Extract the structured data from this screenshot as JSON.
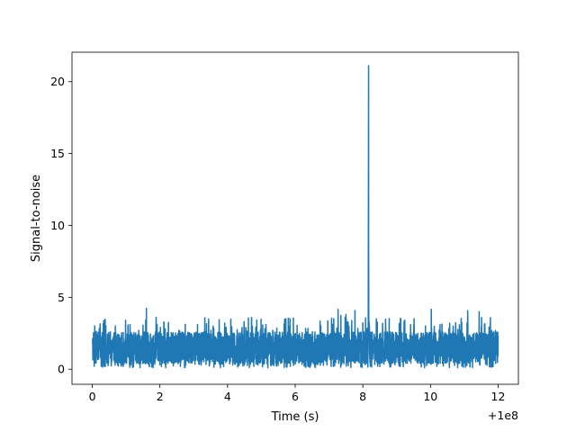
{
  "chart_data": {
    "type": "line",
    "xlabel": "Time (s)",
    "ylabel": "Signal-to-noise",
    "x_offset_label": "+1e8",
    "xlim": [
      -0.6,
      12.6
    ],
    "ylim": [
      -1.05,
      22.05
    ],
    "xticks": [
      0,
      2,
      4,
      6,
      8,
      10,
      12
    ],
    "xtick_labels": [
      "0",
      "2",
      "4",
      "6",
      "8",
      "10",
      "12"
    ],
    "yticks": [
      0,
      5,
      10,
      15,
      20
    ],
    "ytick_labels": [
      "0",
      "5",
      "10",
      "15",
      "20"
    ],
    "grid": false,
    "line_color": "#1f77b4",
    "series": [
      {
        "x_range": [
          0,
          12
        ],
        "noise_band": [
          0.1,
          3.5
        ],
        "noise_occasional_max": 4.3,
        "peak": {
          "x": 8.17,
          "y": 21.1
        }
      }
    ]
  }
}
